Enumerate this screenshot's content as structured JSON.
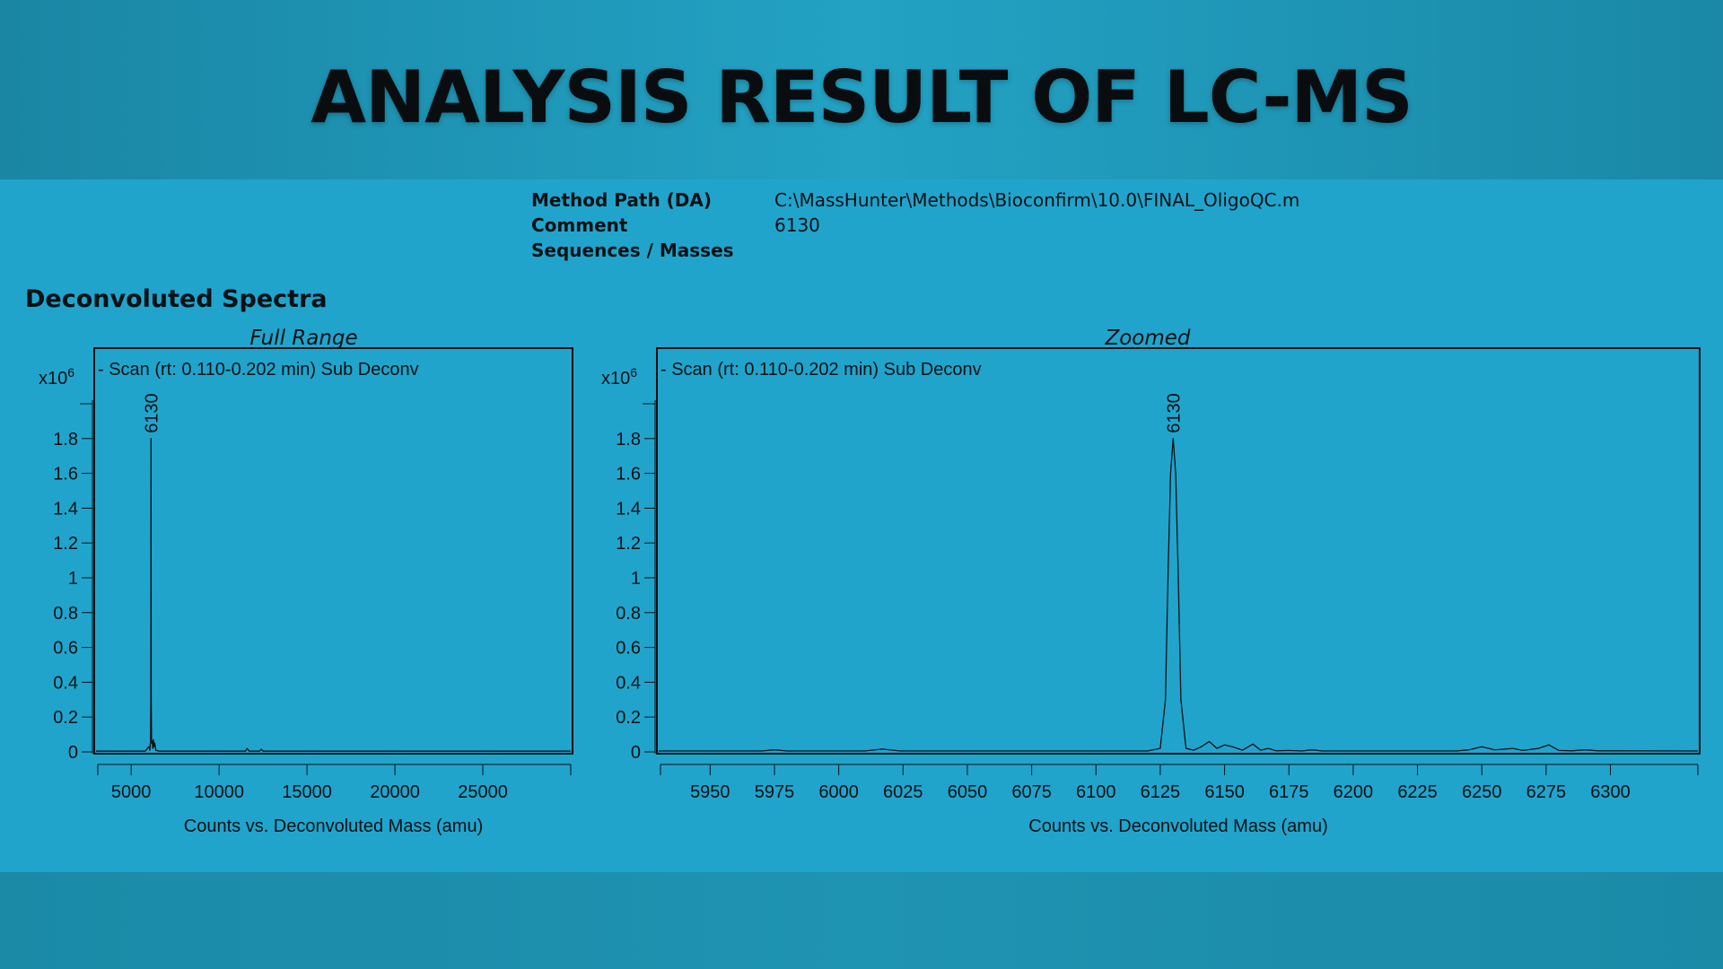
{
  "title": "ANALYSIS RESULT OF LC-MS",
  "meta": [
    {
      "key": "Method Path (DA)",
      "value": "C:\\MassHunter\\Methods\\Bioconfirm\\10.0\\FINAL_OligoQC.m"
    },
    {
      "key": "Comment",
      "value": "6130"
    },
    {
      "key": "Sequences / Masses",
      "value": ""
    }
  ],
  "section_title": "Deconvoluted Spectra",
  "chart_data": [
    {
      "type": "line",
      "title": "Full Range",
      "scan_label": "- Scan (rt: 0.110-0.202 min)  Sub Deconv",
      "y_multiplier": "x10",
      "y_multiplier_exp": "6",
      "xlabel": "Counts vs. Deconvoluted Mass (amu)",
      "ylabel": "",
      "xlim": [
        3000,
        30000
      ],
      "ylim": [
        0,
        2.0
      ],
      "x_ticks": [
        5000,
        10000,
        15000,
        20000,
        25000
      ],
      "y_ticks": [
        0,
        0.2,
        0.4,
        0.6,
        0.8,
        1,
        1.2,
        1.4,
        1.6,
        1.8
      ],
      "peak_labels": [
        {
          "x": 6130,
          "y": 1.8,
          "text": "6130"
        }
      ],
      "series": [
        {
          "x": [
            3000,
            5800,
            6000,
            6060,
            6100,
            6120,
            6130,
            6140,
            6160,
            6200,
            6230,
            6260,
            6300,
            6340,
            6400,
            6600,
            11500,
            11600,
            11700,
            12300,
            12400,
            12500,
            30000
          ],
          "y": [
            0.004,
            0.004,
            0.03,
            0.01,
            0.06,
            0.3,
            1.8,
            0.3,
            0.05,
            0.06,
            0.02,
            0.07,
            0.03,
            0.05,
            0.01,
            0.004,
            0.004,
            0.02,
            0.004,
            0.004,
            0.015,
            0.004,
            0.004
          ]
        }
      ]
    },
    {
      "type": "line",
      "title": "Zoomed",
      "scan_label": "- Scan (rt: 0.110-0.202 min)  Sub Deconv",
      "y_multiplier": "x10",
      "y_multiplier_exp": "6",
      "xlabel": "Counts vs. Deconvoluted Mass (amu)",
      "ylabel": "",
      "xlim": [
        5930,
        6334
      ],
      "ylim": [
        0,
        2.0
      ],
      "x_ticks": [
        5950,
        5975,
        6000,
        6025,
        6050,
        6075,
        6100,
        6125,
        6150,
        6175,
        6200,
        6225,
        6250,
        6275,
        6300
      ],
      "y_ticks": [
        0,
        0.2,
        0.4,
        0.6,
        0.8,
        1,
        1.2,
        1.4,
        1.6,
        1.8
      ],
      "peak_labels": [
        {
          "x": 6130,
          "y": 1.8,
          "text": "6130"
        }
      ],
      "series": [
        {
          "x": [
            5930,
            5970,
            5975,
            5980,
            6010,
            6017,
            6024,
            6060,
            6120,
            6125,
            6127,
            6128,
            6129,
            6130,
            6131,
            6132,
            6133,
            6135,
            6138,
            6141,
            6144,
            6147,
            6150,
            6153,
            6157,
            6161,
            6164,
            6167,
            6170,
            6175,
            6180,
            6184,
            6188,
            6195,
            6240,
            6245,
            6250,
            6255,
            6258,
            6262,
            6266,
            6272,
            6276,
            6280,
            6285,
            6290,
            6295,
            6300,
            6334
          ],
          "y": [
            0.005,
            0.005,
            0.012,
            0.005,
            0.005,
            0.016,
            0.005,
            0.005,
            0.005,
            0.02,
            0.3,
            1.0,
            1.6,
            1.8,
            1.6,
            1.0,
            0.3,
            0.02,
            0.01,
            0.03,
            0.06,
            0.02,
            0.04,
            0.03,
            0.01,
            0.045,
            0.01,
            0.02,
            0.006,
            0.008,
            0.005,
            0.012,
            0.005,
            0.005,
            0.005,
            0.012,
            0.03,
            0.012,
            0.015,
            0.02,
            0.008,
            0.02,
            0.04,
            0.008,
            0.006,
            0.012,
            0.006,
            0.006,
            0.005
          ]
        }
      ]
    }
  ]
}
